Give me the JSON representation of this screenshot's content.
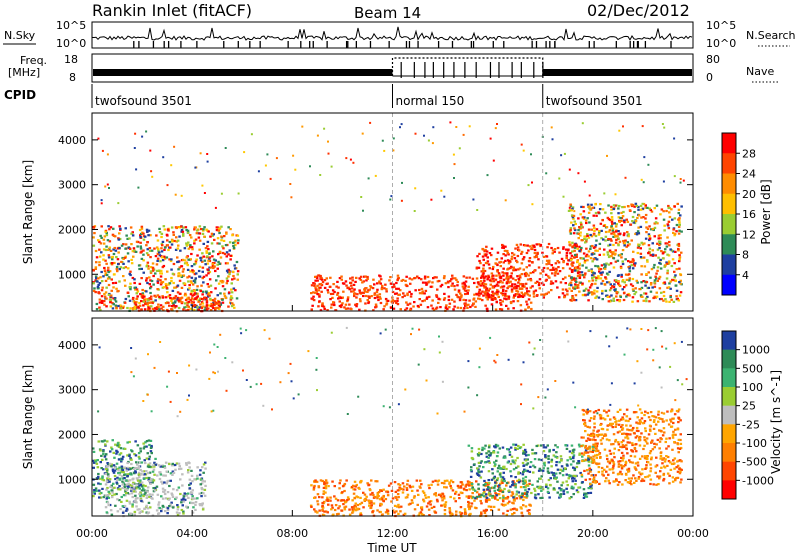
{
  "header": {
    "station": "Rankin Inlet (fitACF)",
    "beam": "Beam 14",
    "date": "02/Dec/2012"
  },
  "top_strips": {
    "nsky_label": "N.Sky",
    "nsky_ticks": [
      "10^5",
      "10^0"
    ],
    "nsearch_label": "N.Search",
    "nsearch_ticks": [
      "10^5",
      "10^0"
    ],
    "freq_label": "Freq.",
    "freq_unit": "[MHz]",
    "freq_ticks": [
      "18",
      "8"
    ],
    "nave_label": "Nave",
    "nave_ticks": [
      "80",
      "0"
    ],
    "cpid_label": "CPID",
    "cpid_segments": [
      {
        "label": "twofsound 3501",
        "start_h": 0,
        "end_h": 12
      },
      {
        "label": "normal 150",
        "start_h": 12,
        "end_h": 18
      },
      {
        "label": "twofsound 3501",
        "start_h": 18,
        "end_h": 24
      }
    ]
  },
  "chart_data": [
    {
      "type": "heatmap",
      "quantity": "Power",
      "ylabel": "Slant Range [km]",
      "ylim": [
        180,
        4600
      ],
      "yticks": [
        "4000",
        "3000",
        "2000",
        "1000"
      ],
      "xlim": [
        "00:00",
        "24:00"
      ],
      "colorbar": {
        "label": "Power [dB]",
        "ticks": [
          "28",
          "24",
          "20",
          "16",
          "12",
          "8",
          "4"
        ],
        "colors": [
          "#ff0000",
          "#ff4400",
          "#ff8c00",
          "#ffbf00",
          "#9acd32",
          "#2e8b57",
          "#1e3fa0",
          "#0000ff"
        ]
      },
      "echo_regions": [
        {
          "start_h": 0.0,
          "end_h": 5.8,
          "range_km": [
            200,
            2100
          ],
          "level": "mixed"
        },
        {
          "start_h": 1.5,
          "end_h": 5.0,
          "range_km": [
            200,
            600
          ],
          "level": "high"
        },
        {
          "start_h": 8.7,
          "end_h": 17.5,
          "range_km": [
            200,
            1000
          ],
          "level": "high"
        },
        {
          "start_h": 15.3,
          "end_h": 19.5,
          "range_km": [
            500,
            1700
          ],
          "level": "high"
        },
        {
          "start_h": 19.0,
          "end_h": 23.5,
          "range_km": [
            400,
            2600
          ],
          "level": "mixed"
        }
      ]
    },
    {
      "type": "heatmap",
      "quantity": "Velocity",
      "ylabel": "Slant Range [km]",
      "ylim": [
        180,
        4600
      ],
      "yticks": [
        "4000",
        "3000",
        "2000",
        "1000"
      ],
      "xlim": [
        "00:00",
        "24:00"
      ],
      "xticks": [
        "00:00",
        "04:00",
        "08:00",
        "12:00",
        "16:00",
        "20:00",
        "00:00"
      ],
      "xlabel": "Time UT",
      "colorbar": {
        "label": "Velocity [m s^-1]",
        "ticks": [
          "1000",
          "500",
          "100",
          "25",
          "-25",
          "-100",
          "-500",
          "-1000"
        ],
        "colors": [
          "#1e3fa0",
          "#2e8b57",
          "#3cb371",
          "#9acd32",
          "#bebebe",
          "#ffa500",
          "#ff7f00",
          "#ff4500",
          "#ff0000"
        ]
      },
      "echo_regions": [
        {
          "start_h": 0.0,
          "end_h": 2.5,
          "range_km": [
            600,
            1900
          ],
          "level": "green"
        },
        {
          "start_h": 0.5,
          "end_h": 4.5,
          "range_km": [
            200,
            1400
          ],
          "level": "grey"
        },
        {
          "start_h": 8.7,
          "end_h": 17.5,
          "range_km": [
            200,
            1000
          ],
          "level": "orange"
        },
        {
          "start_h": 15.0,
          "end_h": 20.0,
          "range_km": [
            600,
            1800
          ],
          "level": "green"
        },
        {
          "start_h": 19.5,
          "end_h": 23.5,
          "range_km": [
            900,
            2600
          ],
          "level": "orange"
        }
      ]
    }
  ]
}
